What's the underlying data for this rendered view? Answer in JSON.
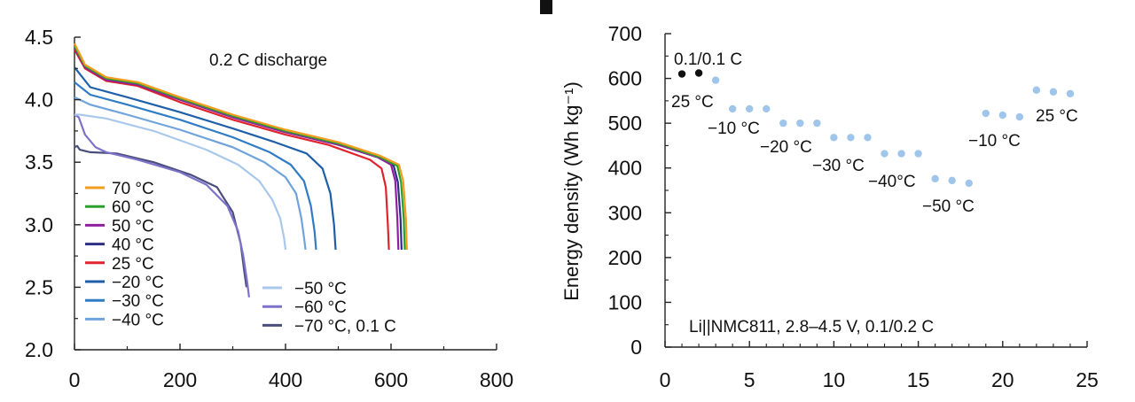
{
  "chart_data": [
    {
      "type": "line",
      "title": "",
      "annotation": "0.2 C discharge",
      "xlabel": "",
      "ylabel": "",
      "xlim": [
        0,
        800
      ],
      "ylim": [
        2.0,
        4.5
      ],
      "xticks": [
        "0",
        "200",
        "400",
        "600",
        "800"
      ],
      "yticks": [
        "2.0",
        "2.5",
        "3.0",
        "3.5",
        "4.0",
        "4.5"
      ],
      "series": [
        {
          "name": "70 °C",
          "color": "#f39c1f",
          "x": [
            0,
            20,
            60,
            120,
            200,
            300,
            400,
            500,
            580,
            615,
            623,
            628,
            630
          ],
          "y": [
            4.45,
            4.28,
            4.18,
            4.14,
            4.02,
            3.88,
            3.76,
            3.66,
            3.55,
            3.48,
            3.35,
            3.05,
            2.8
          ]
        },
        {
          "name": "60 °C",
          "color": "#2ca02c",
          "x": [
            0,
            20,
            60,
            120,
            200,
            300,
            400,
            500,
            580,
            612,
            619,
            624,
            626
          ],
          "y": [
            4.43,
            4.27,
            4.17,
            4.13,
            4.01,
            3.87,
            3.75,
            3.65,
            3.54,
            3.47,
            3.34,
            3.05,
            2.8
          ]
        },
        {
          "name": "50 °C",
          "color": "#8e1f9e",
          "x": [
            0,
            20,
            60,
            120,
            200,
            300,
            400,
            500,
            575,
            600,
            608,
            612,
            614
          ],
          "y": [
            4.42,
            4.26,
            4.16,
            4.12,
            4.0,
            3.86,
            3.74,
            3.64,
            3.54,
            3.48,
            3.35,
            3.05,
            2.8
          ]
        },
        {
          "name": "40 °C",
          "color": "#2b2e83",
          "x": [
            0,
            20,
            60,
            120,
            200,
            300,
            400,
            500,
            575,
            605,
            613,
            618,
            620
          ],
          "y": [
            4.42,
            4.26,
            4.16,
            4.12,
            4.0,
            3.86,
            3.74,
            3.64,
            3.54,
            3.47,
            3.34,
            3.05,
            2.8
          ]
        },
        {
          "name": "25 °C",
          "color": "#e0232f",
          "x": [
            0,
            20,
            60,
            120,
            200,
            300,
            400,
            480,
            560,
            582,
            590,
            594,
            596
          ],
          "y": [
            4.4,
            4.25,
            4.15,
            4.11,
            3.98,
            3.84,
            3.72,
            3.64,
            3.52,
            3.45,
            3.3,
            3.0,
            2.8
          ]
        },
        {
          "name": "−20 °C",
          "color": "#1f5fa8",
          "x": [
            0,
            30,
            100,
            200,
            300,
            380,
            440,
            470,
            485,
            492,
            495
          ],
          "y": [
            4.26,
            4.1,
            4.02,
            3.9,
            3.77,
            3.66,
            3.57,
            3.45,
            3.25,
            3.0,
            2.8
          ]
        },
        {
          "name": "−30 °C",
          "color": "#2f7cc4",
          "x": [
            0,
            30,
            100,
            200,
            300,
            370,
            410,
            435,
            448,
            455,
            458
          ],
          "y": [
            4.14,
            4.04,
            3.96,
            3.84,
            3.7,
            3.58,
            3.48,
            3.35,
            3.15,
            2.95,
            2.8
          ]
        },
        {
          "name": "−40 °C",
          "color": "#6fa3dc",
          "x": [
            0,
            30,
            100,
            200,
            300,
            360,
            400,
            420,
            430,
            435,
            438
          ],
          "y": [
            4.02,
            3.96,
            3.88,
            3.76,
            3.62,
            3.5,
            3.38,
            3.25,
            3.05,
            2.9,
            2.8
          ]
        },
        {
          "name": "−50 °C",
          "color": "#a9c8ec",
          "x": [
            0,
            10,
            60,
            150,
            250,
            310,
            350,
            375,
            390,
            397,
            400
          ],
          "y": [
            3.88,
            3.88,
            3.85,
            3.75,
            3.6,
            3.48,
            3.35,
            3.2,
            3.05,
            2.9,
            2.8
          ]
        },
        {
          "name": "−60 °C",
          "color": "#7d72c9",
          "x": [
            0,
            8,
            20,
            40,
            60,
            120,
            200,
            250,
            290,
            310,
            320,
            327,
            331
          ],
          "y": [
            3.88,
            3.86,
            3.72,
            3.62,
            3.58,
            3.52,
            3.42,
            3.32,
            3.15,
            2.95,
            2.75,
            2.55,
            2.42
          ]
        },
        {
          "name": "−70 °C, 0.1 C",
          "color": "#4a4e7c",
          "x": [
            0,
            5,
            10,
            30,
            80,
            150,
            220,
            270,
            300,
            315,
            322,
            326
          ],
          "y": [
            3.62,
            3.63,
            3.6,
            3.58,
            3.57,
            3.5,
            3.4,
            3.3,
            3.1,
            2.85,
            2.62,
            2.5
          ]
        }
      ],
      "legend": {
        "left_column": [
          "70 °C",
          "60 °C",
          "50 °C",
          "40 °C",
          "25 °C",
          "−20 °C",
          "−30 °C",
          "−40 °C"
        ],
        "right_column": [
          "−50 °C",
          "−60 °C",
          "−70 °C, 0.1 C"
        ]
      }
    },
    {
      "type": "scatter",
      "title": "",
      "xlabel": "",
      "ylabel": "Energy density (Wh kg⁻¹)",
      "xlim": [
        0,
        25
      ],
      "ylim": [
        0,
        700
      ],
      "xticks": [
        "0",
        "5",
        "10",
        "15",
        "20",
        "25"
      ],
      "yticks": [
        "0",
        "100",
        "200",
        "300",
        "400",
        "500",
        "600",
        "700"
      ],
      "annotation": "Li||NMC811, 2.8–4.5 V, 0.1/0.2 C",
      "series": [
        {
          "name": "0.1/0.1 C",
          "color": "#111111",
          "x": [
            1,
            2
          ],
          "y": [
            610,
            612
          ]
        },
        {
          "name": "0.2 C",
          "color": "#9fc6ea",
          "x": [
            3,
            4,
            5,
            6,
            7,
            8,
            9,
            10,
            11,
            12,
            13,
            14,
            15,
            16,
            17,
            18,
            19,
            20,
            21,
            22,
            23,
            24
          ],
          "y": [
            596,
            532,
            532,
            532,
            500,
            500,
            500,
            468,
            468,
            468,
            432,
            432,
            432,
            376,
            372,
            366,
            522,
            518,
            514,
            574,
            570,
            566
          ]
        }
      ],
      "labels": [
        {
          "text": "0.1/0.1 C"
        },
        {
          "text": "25 °C"
        },
        {
          "text": "−10 °C"
        },
        {
          "text": "−20 °C"
        },
        {
          "text": "−30 °C"
        },
        {
          "text": "−40°C"
        },
        {
          "text": "−50 °C"
        },
        {
          "text": "−10 °C"
        },
        {
          "text": "25 °C"
        }
      ]
    }
  ]
}
